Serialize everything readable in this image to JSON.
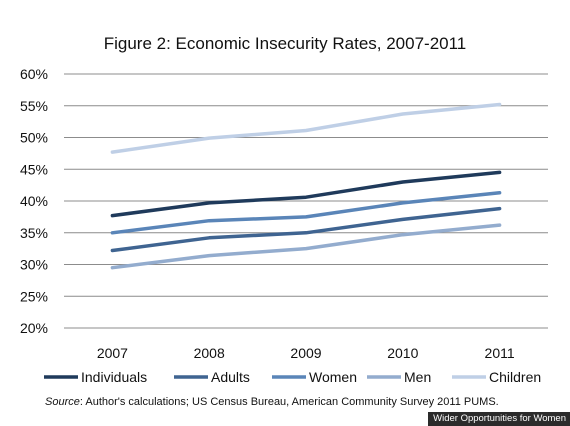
{
  "chart_data": {
    "type": "line",
    "title": "Figure 2: Economic Insecurity Rates, 2007-2011",
    "x": [
      "2007",
      "2008",
      "2009",
      "2010",
      "2011"
    ],
    "y_ticks": [
      "60%",
      "55%",
      "50%",
      "45%",
      "40%",
      "35%",
      "30%",
      "25%",
      "20%"
    ],
    "ylim": [
      20,
      60
    ],
    "grid": true,
    "legend_position": "bottom",
    "series": [
      {
        "name": "Individuals",
        "color": "#1f3a5b",
        "values": [
          37.7,
          39.7,
          40.6,
          43.0,
          44.5
        ]
      },
      {
        "name": "Adults",
        "color": "#3f6491",
        "values": [
          32.2,
          34.2,
          35.0,
          37.1,
          38.8
        ]
      },
      {
        "name": "Women",
        "color": "#5a85b8",
        "values": [
          35.0,
          36.9,
          37.5,
          39.7,
          41.3
        ]
      },
      {
        "name": "Men",
        "color": "#93acce",
        "values": [
          29.5,
          31.4,
          32.5,
          34.7,
          36.2
        ]
      },
      {
        "name": "Children",
        "color": "#bfcfe6",
        "values": [
          47.7,
          49.9,
          51.1,
          53.7,
          55.2
        ]
      }
    ]
  },
  "source": {
    "label": "Source",
    "text": ": Author's calculations; US Census Bureau, American Community Survey 2011 PUMS."
  },
  "credit": "Wider Opportunities for Women"
}
